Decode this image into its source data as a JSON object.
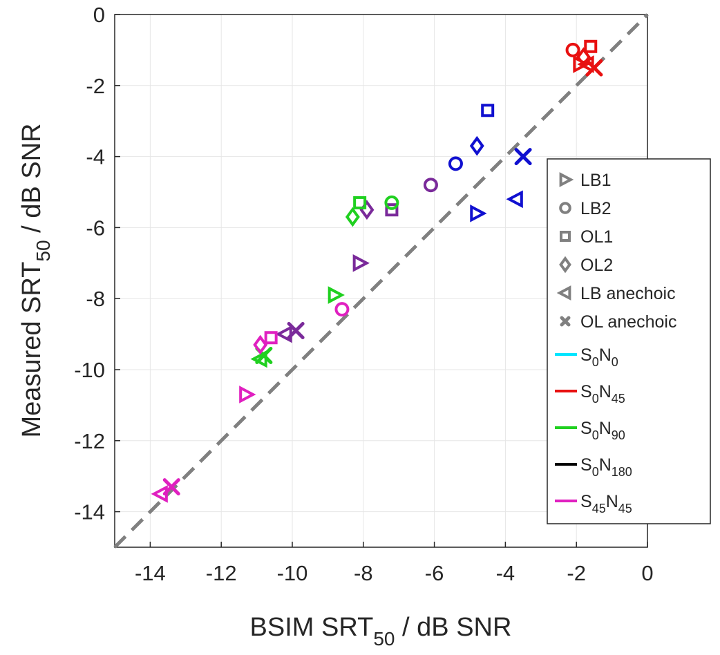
{
  "chart_data": {
    "type": "scatter",
    "xlabel": {
      "main": "BSIM SRT",
      "sub": "50",
      "tail": " / dB SNR"
    },
    "ylabel": {
      "main": "Measured SRT",
      "sub": "50",
      "tail": " / dB SNR"
    },
    "xlim": [
      -15,
      0
    ],
    "ylim": [
      -15,
      0
    ],
    "xticks": [
      -14,
      -12,
      -10,
      -8,
      -6,
      -4,
      -2,
      0
    ],
    "yticks": [
      0,
      -2,
      -4,
      -6,
      -8,
      -10,
      -12,
      -14
    ],
    "xtick_labels": [
      "-14",
      "-12",
      "-10",
      "-8",
      "-6",
      "-4",
      "-2",
      "0"
    ],
    "ytick_labels": [
      "0",
      "-2",
      "-4",
      "-6",
      "-8",
      "-10",
      "-12",
      "-14"
    ],
    "grid": true,
    "reference_line": {
      "type": "identity",
      "style": "dashed",
      "color": "#808080"
    },
    "legend_position": "right",
    "marker_legend": [
      {
        "marker": "triangle-right",
        "label": "LB1"
      },
      {
        "marker": "circle",
        "label": "LB2"
      },
      {
        "marker": "square",
        "label": "OL1"
      },
      {
        "marker": "diamond",
        "label": "OL2"
      },
      {
        "marker": "triangle-left",
        "label": "LB anechoic"
      },
      {
        "marker": "x",
        "label": "OL anechoic"
      }
    ],
    "condition_legend": [
      {
        "label": "S0N0",
        "s1": "0",
        "n": "N",
        "s2": "0",
        "color": "#00e5ff"
      },
      {
        "label": "S0N45",
        "s1": "0",
        "n": "N",
        "s2": "45",
        "color": "#e81010"
      },
      {
        "label": "S0N90",
        "s1": "0",
        "n": "N",
        "s2": "90",
        "color": "#20d020"
      },
      {
        "label": "S0N180",
        "s1": "0",
        "n": "N",
        "s2": "180",
        "color": "#000000"
      },
      {
        "label": "S45N45",
        "s1": "45",
        "n": "N",
        "s2": "45",
        "color": "#e020c0"
      }
    ],
    "series": [
      {
        "condition": "S0N45",
        "color": "#e81010",
        "points": [
          {
            "x": -2.1,
            "y": -1.0,
            "marker": "circle"
          },
          {
            "x": -1.6,
            "y": -0.9,
            "marker": "square"
          },
          {
            "x": -1.8,
            "y": -1.2,
            "marker": "diamond"
          },
          {
            "x": -1.9,
            "y": -1.4,
            "marker": "triangle-right"
          },
          {
            "x": -1.7,
            "y": -1.4,
            "marker": "triangle-left"
          },
          {
            "x": -1.5,
            "y": -1.5,
            "marker": "x"
          }
        ]
      },
      {
        "condition": "blue",
        "color": "#1010d0",
        "points": [
          {
            "x": -4.5,
            "y": -2.7,
            "marker": "square"
          },
          {
            "x": -4.8,
            "y": -3.7,
            "marker": "diamond"
          },
          {
            "x": -5.4,
            "y": -4.2,
            "marker": "circle"
          },
          {
            "x": -3.5,
            "y": -4.0,
            "marker": "x"
          },
          {
            "x": -3.7,
            "y": -5.2,
            "marker": "triangle-left"
          },
          {
            "x": -4.8,
            "y": -5.6,
            "marker": "triangle-right"
          }
        ]
      },
      {
        "condition": "purple",
        "color": "#7a2a9a",
        "points": [
          {
            "x": -6.1,
            "y": -4.8,
            "marker": "circle"
          },
          {
            "x": -7.2,
            "y": -5.5,
            "marker": "square"
          },
          {
            "x": -7.9,
            "y": -5.5,
            "marker": "diamond"
          },
          {
            "x": -8.1,
            "y": -7.0,
            "marker": "triangle-right"
          },
          {
            "x": -10.2,
            "y": -9.0,
            "marker": "triangle-left"
          },
          {
            "x": -9.9,
            "y": -8.9,
            "marker": "x"
          }
        ]
      },
      {
        "condition": "S0N90",
        "color": "#20d020",
        "points": [
          {
            "x": -7.2,
            "y": -5.3,
            "marker": "circle"
          },
          {
            "x": -8.1,
            "y": -5.3,
            "marker": "square"
          },
          {
            "x": -8.3,
            "y": -5.7,
            "marker": "diamond"
          },
          {
            "x": -8.8,
            "y": -7.9,
            "marker": "triangle-right"
          },
          {
            "x": -10.9,
            "y": -9.7,
            "marker": "triangle-left"
          },
          {
            "x": -10.8,
            "y": -9.6,
            "marker": "x"
          }
        ]
      },
      {
        "condition": "S45N45",
        "color": "#e020c0",
        "points": [
          {
            "x": -8.6,
            "y": -8.3,
            "marker": "circle"
          },
          {
            "x": -10.6,
            "y": -9.1,
            "marker": "square"
          },
          {
            "x": -10.9,
            "y": -9.3,
            "marker": "diamond"
          },
          {
            "x": -11.3,
            "y": -10.7,
            "marker": "triangle-right"
          },
          {
            "x": -13.7,
            "y": -13.5,
            "marker": "triangle-left"
          },
          {
            "x": -13.4,
            "y": -13.3,
            "marker": "x"
          }
        ]
      }
    ]
  }
}
